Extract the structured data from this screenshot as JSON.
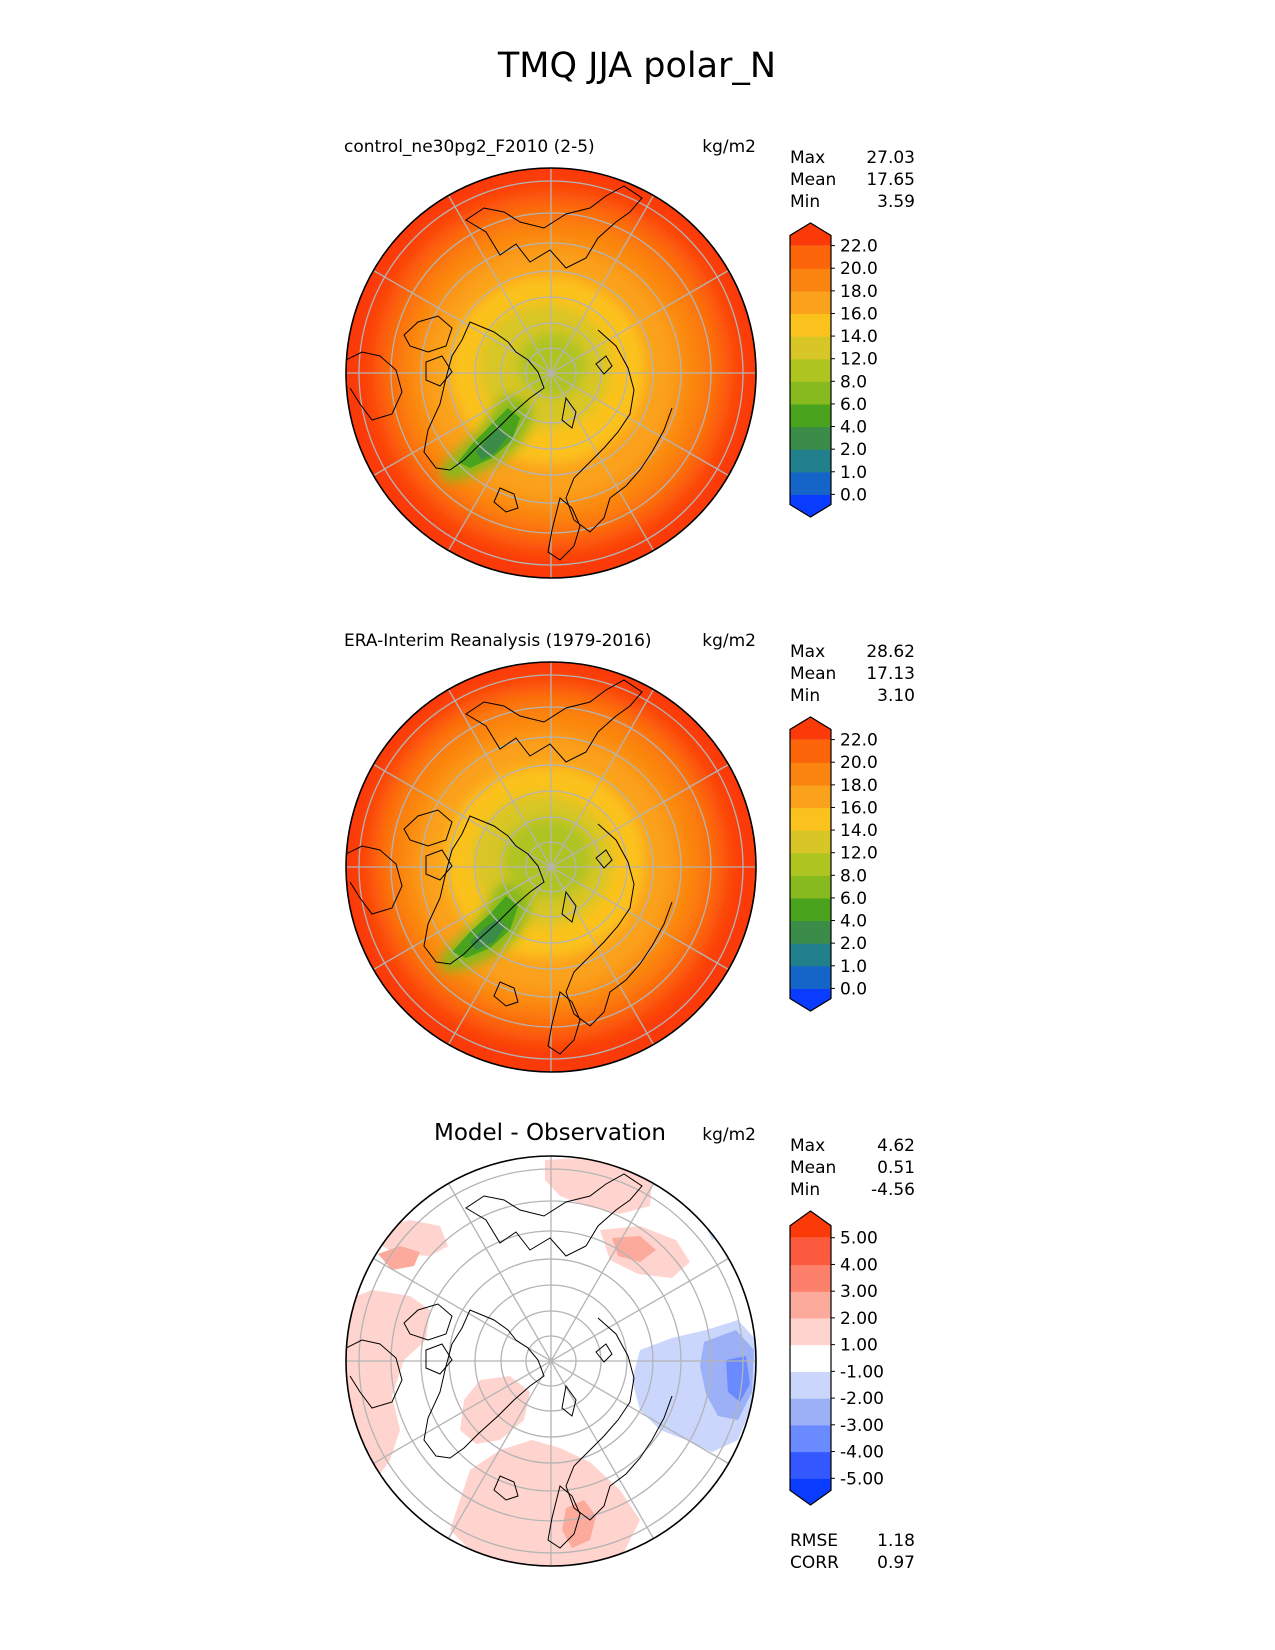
{
  "figure": {
    "title": "TMQ JJA polar_N"
  },
  "colors": {
    "abs_levels": [
      "#0a3cff",
      "#1565c8",
      "#22808c",
      "#3a8c48",
      "#4aa31c",
      "#86ba1e",
      "#aec420",
      "#d8c626",
      "#fbc21e",
      "#fba21c",
      "#fb8410",
      "#fc640a",
      "#fb3a0a"
    ],
    "diff_levels": [
      "#0a3cff",
      "#3358ff",
      "#6a8aff",
      "#9cb0f8",
      "#cad6fb",
      "#ffffff",
      "#ffd4ce",
      "#fcaa9c",
      "#fc806a",
      "#fb5a3e",
      "#fb3a0a"
    ],
    "grid": "#b4b4b4",
    "coast": "#000000"
  },
  "chart_data": [
    {
      "type": "heatmap",
      "projection": "north-polar-stereographic",
      "title": "control_ne30pg2_F2010 (2-5)",
      "units": "kg/m2",
      "stats": {
        "max_label": "Max",
        "max": "27.03",
        "mean_label": "Mean",
        "mean": "17.65",
        "min_label": "Min",
        "min": "3.59"
      },
      "colorbar": {
        "extend": "both",
        "levels": [
          "0.0",
          "1.0",
          "2.0",
          "4.0",
          "6.0",
          "8.0",
          "12.0",
          "14.0",
          "16.0",
          "18.0",
          "20.0",
          "22.0"
        ]
      },
      "field_summary": {
        "pole": 10.5,
        "greenland": 4,
        "midlatitude": 17,
        "rim": 23
      }
    },
    {
      "type": "heatmap",
      "projection": "north-polar-stereographic",
      "title": "ERA-Interim Reanalysis (1979-2016)",
      "units": "kg/m2",
      "stats": {
        "max_label": "Max",
        "max": "28.62",
        "mean_label": "Mean",
        "mean": "17.13",
        "min_label": "Min",
        "min": "3.10"
      },
      "colorbar": {
        "extend": "both",
        "levels": [
          "0.0",
          "1.0",
          "2.0",
          "4.0",
          "6.0",
          "8.0",
          "12.0",
          "14.0",
          "16.0",
          "18.0",
          "20.0",
          "22.0"
        ]
      },
      "field_summary": {
        "pole": 10,
        "greenland": 4,
        "midlatitude": 16.5,
        "rim": 22.5
      }
    },
    {
      "type": "heatmap",
      "projection": "north-polar-stereographic",
      "title": "Model - Observation",
      "units": "kg/m2",
      "stats": {
        "max_label": "Max",
        "max": "4.62",
        "mean_label": "Mean",
        "mean": "0.51",
        "min_label": "Min",
        "min": "-4.56"
      },
      "colorbar": {
        "extend": "both",
        "levels": [
          "-5.00",
          "-4.00",
          "-3.00",
          "-2.00",
          "-1.00",
          "1.00",
          "2.00",
          "3.00",
          "4.00",
          "5.00"
        ]
      },
      "metrics": {
        "rmse_label": "RMSE",
        "rmse": "1.18",
        "corr_label": "CORR",
        "corr": "0.97"
      }
    }
  ]
}
